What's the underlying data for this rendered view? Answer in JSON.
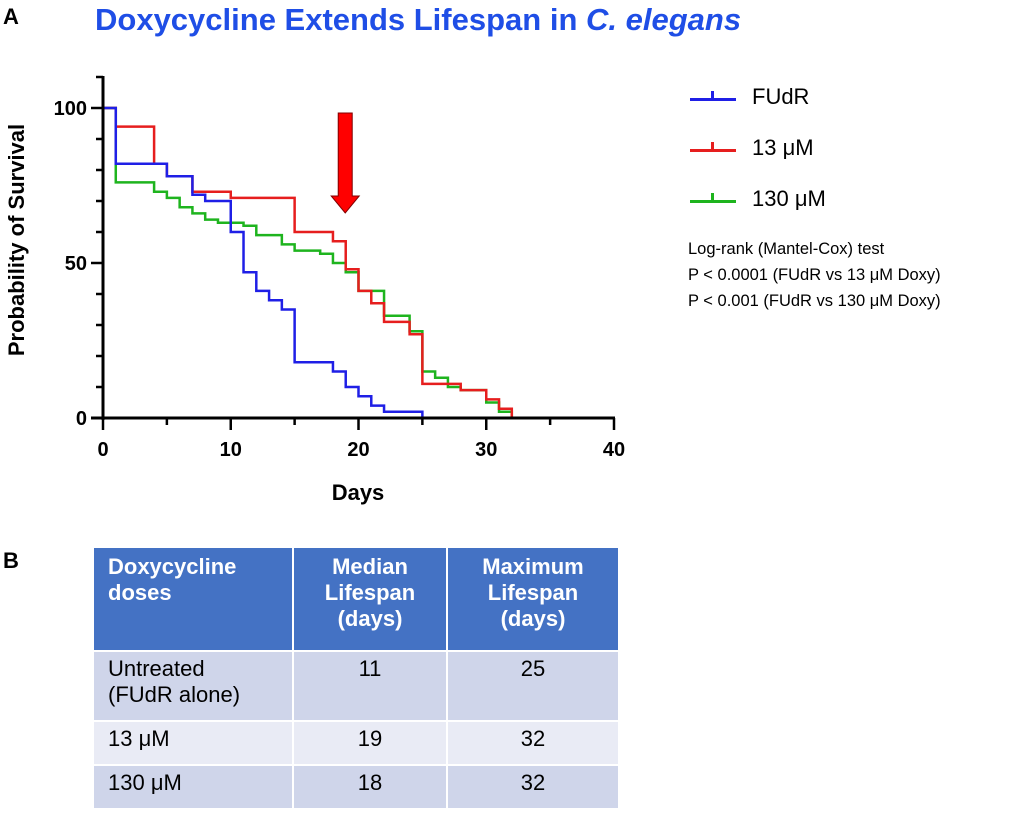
{
  "panel_labels": {
    "a": "A",
    "b": "B"
  },
  "title": {
    "main": "Doxycycline Extends Lifespan in ",
    "species": "C. elegans"
  },
  "chart_data": {
    "type": "line",
    "step": true,
    "title": "Doxycycline Extends Lifespan in C. elegans",
    "xlabel": "Days",
    "ylabel": "Probability of Survival",
    "xlim": [
      0,
      40
    ],
    "ylim": [
      0,
      100
    ],
    "xticks": [
      0,
      10,
      20,
      30,
      40
    ],
    "yticks": [
      0,
      50,
      100
    ],
    "colors": {
      "FUdR": "#1f1fe6",
      "13 μM": "#e61e1e",
      "130 μM": "#1eb41e"
    },
    "series": [
      {
        "name": "FUdR",
        "color": "#1f1fe6",
        "x": [
          0,
          1,
          4,
          5,
          7,
          8,
          10,
          11,
          12,
          13,
          14,
          15,
          18,
          19,
          20,
          21,
          22,
          25
        ],
        "y": [
          100,
          82,
          82,
          78,
          72,
          70,
          60,
          47,
          41,
          38,
          35,
          18,
          15,
          10,
          7,
          4,
          2,
          0
        ]
      },
      {
        "name": "13 μM",
        "color": "#e61e1e",
        "x": [
          0,
          1,
          4,
          5,
          7,
          10,
          15,
          18,
          19,
          20,
          21,
          22,
          23,
          24,
          25,
          26,
          28,
          30,
          31,
          32
        ],
        "y": [
          100,
          94,
          82,
          78,
          73,
          71,
          60,
          57,
          48,
          41,
          37,
          31,
          31,
          27,
          11,
          11,
          9,
          6,
          3,
          0
        ]
      },
      {
        "name": "130 μM",
        "color": "#1eb41e",
        "x": [
          0,
          1,
          4,
          5,
          6,
          7,
          8,
          9,
          11,
          12,
          14,
          15,
          17,
          18,
          19,
          20,
          22,
          24,
          25,
          26,
          27,
          28,
          30,
          31,
          32
        ],
        "y": [
          100,
          76,
          73,
          71,
          68,
          66,
          64,
          63,
          62,
          59,
          56,
          54,
          53,
          50,
          47,
          41,
          33,
          28,
          15,
          13,
          10,
          9,
          5,
          2,
          0
        ]
      }
    ],
    "arrow_annotation_x": 19,
    "legend_position": "right"
  },
  "legend": {
    "items": [
      {
        "label": "FUdR",
        "color": "#1f1fe6"
      },
      {
        "label": "13 μM",
        "color": "#e61e1e"
      },
      {
        "label": "130 μM",
        "color": "#1eb41e"
      }
    ]
  },
  "stats": {
    "test": "Log-rank (Mantel-Cox)  test",
    "p1": "P < 0.0001  (FUdR vs 13 μM Doxy)",
    "p2": "P < 0.001 (FUdR vs 130 μM Doxy)"
  },
  "table": {
    "headers": [
      [
        "Doxycycline",
        "doses"
      ],
      [
        "Median",
        "Lifespan",
        "(days)"
      ],
      [
        "Maximum",
        "Lifespan",
        "(days)"
      ]
    ],
    "rows": [
      {
        "dose": [
          "Untreated",
          "(FUdR alone)"
        ],
        "median": "11",
        "max": "25"
      },
      {
        "dose": [
          "13 μM"
        ],
        "median": "19",
        "max": "32"
      },
      {
        "dose": [
          "130 μM"
        ],
        "median": "18",
        "max": "32"
      }
    ],
    "colors": {
      "header": "#4472c4",
      "row_odd": "#cfd5ea",
      "row_even": "#e9ebf5"
    }
  }
}
